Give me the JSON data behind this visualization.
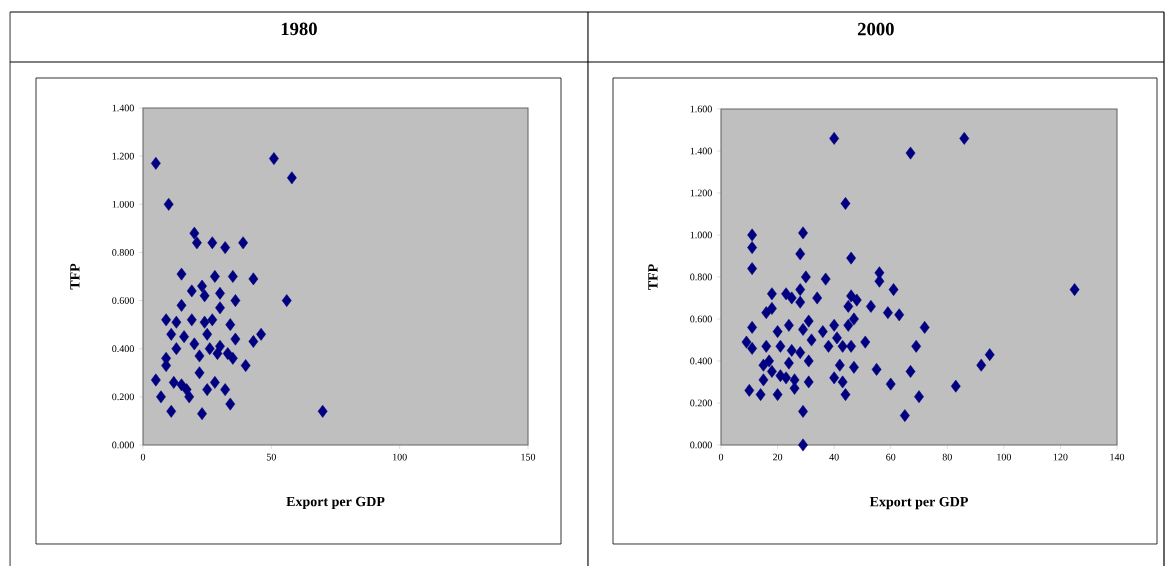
{
  "chart_data": [
    {
      "type": "scatter",
      "title": "1980",
      "xlabel": "Export per GDP",
      "ylabel": "TFP",
      "color": "#000080",
      "marker": "diamond",
      "xlim": [
        0,
        150
      ],
      "xticks": [
        0,
        50,
        100,
        150
      ],
      "ylim": [
        0,
        1.4
      ],
      "yticks": [
        {
          "value": 0,
          "label": "0.000"
        },
        {
          "value": 0.2,
          "label": "0.200"
        },
        {
          "value": 0.4,
          "label": "0.400"
        },
        {
          "value": 0.6,
          "label": "0.600"
        },
        {
          "value": 0.8,
          "label": "0.800"
        },
        {
          "value": 1.0,
          "label": "1.000"
        },
        {
          "value": 1.2,
          "label": "1.200"
        },
        {
          "value": 1.4,
          "label": "1.400"
        }
      ],
      "x": [
        5,
        51,
        58,
        10,
        20,
        21,
        27,
        32,
        39,
        15,
        28,
        35,
        43,
        19,
        23,
        30,
        36,
        56,
        15,
        30,
        9,
        19,
        13,
        24,
        34,
        11,
        16,
        25,
        13,
        22,
        30,
        36,
        43,
        46,
        35,
        40,
        9,
        9,
        22,
        5,
        12,
        17,
        7,
        11,
        23,
        25,
        28,
        32,
        34,
        70,
        18,
        15,
        26,
        29,
        33,
        20,
        27,
        24
      ],
      "values": [
        1.17,
        1.19,
        1.11,
        1.0,
        0.88,
        0.84,
        0.84,
        0.82,
        0.84,
        0.71,
        0.7,
        0.7,
        0.69,
        0.64,
        0.66,
        0.63,
        0.6,
        0.6,
        0.58,
        0.57,
        0.52,
        0.52,
        0.51,
        0.51,
        0.5,
        0.46,
        0.45,
        0.46,
        0.4,
        0.37,
        0.41,
        0.44,
        0.43,
        0.46,
        0.36,
        0.33,
        0.36,
        0.33,
        0.3,
        0.27,
        0.26,
        0.23,
        0.2,
        0.14,
        0.13,
        0.23,
        0.26,
        0.23,
        0.17,
        0.14,
        0.2,
        0.25,
        0.4,
        0.38,
        0.38,
        0.42,
        0.52,
        0.62
      ]
    },
    {
      "type": "scatter",
      "title": "2000",
      "xlabel": "Export per GDP",
      "ylabel": "TFP",
      "color": "#000080",
      "marker": "diamond",
      "xlim": [
        0,
        140
      ],
      "xticks": [
        0,
        20,
        40,
        60,
        80,
        100,
        120,
        140
      ],
      "ylim": [
        0,
        1.6
      ],
      "yticks": [
        {
          "value": 0,
          "label": "0.000"
        },
        {
          "value": 0.2,
          "label": "0.200"
        },
        {
          "value": 0.4,
          "label": "0.400"
        },
        {
          "value": 0.6,
          "label": "0.600"
        },
        {
          "value": 0.8,
          "label": "0.800"
        },
        {
          "value": 1.0,
          "label": "1.000"
        },
        {
          "value": 1.2,
          "label": "1.200"
        },
        {
          "value": 1.4,
          "label": "1.400"
        },
        {
          "value": 1.6,
          "label": "1.600"
        }
      ],
      "x": [
        40,
        67,
        86,
        44,
        11,
        29,
        11,
        28,
        46,
        11,
        30,
        37,
        56,
        56,
        61,
        125,
        18,
        23,
        28,
        25,
        28,
        34,
        46,
        48,
        53,
        45,
        16,
        18,
        59,
        63,
        31,
        11,
        24,
        20,
        36,
        40,
        45,
        47,
        72,
        9,
        11,
        16,
        21,
        29,
        32,
        38,
        41,
        43,
        46,
        51,
        69,
        25,
        28,
        15,
        17,
        24,
        31,
        18,
        21,
        23,
        26,
        42,
        47,
        55,
        67,
        15,
        10,
        14,
        20,
        26,
        31,
        40,
        43,
        44,
        60,
        83,
        92,
        95,
        70,
        65,
        29,
        29
      ],
      "values": [
        1.46,
        1.39,
        1.46,
        1.15,
        1.0,
        1.01,
        0.94,
        0.91,
        0.89,
        0.84,
        0.8,
        0.79,
        0.82,
        0.78,
        0.74,
        0.74,
        0.72,
        0.72,
        0.74,
        0.7,
        0.68,
        0.7,
        0.71,
        0.69,
        0.66,
        0.66,
        0.63,
        0.65,
        0.63,
        0.62,
        0.59,
        0.56,
        0.57,
        0.54,
        0.54,
        0.57,
        0.57,
        0.6,
        0.56,
        0.49,
        0.46,
        0.47,
        0.47,
        0.55,
        0.5,
        0.47,
        0.51,
        0.47,
        0.47,
        0.49,
        0.47,
        0.45,
        0.44,
        0.38,
        0.4,
        0.39,
        0.4,
        0.35,
        0.33,
        0.32,
        0.31,
        0.38,
        0.37,
        0.36,
        0.35,
        0.31,
        0.26,
        0.24,
        0.24,
        0.27,
        0.3,
        0.32,
        0.3,
        0.24,
        0.29,
        0.28,
        0.38,
        0.43,
        0.23,
        0.14,
        0.16,
        0.0
      ]
    }
  ]
}
